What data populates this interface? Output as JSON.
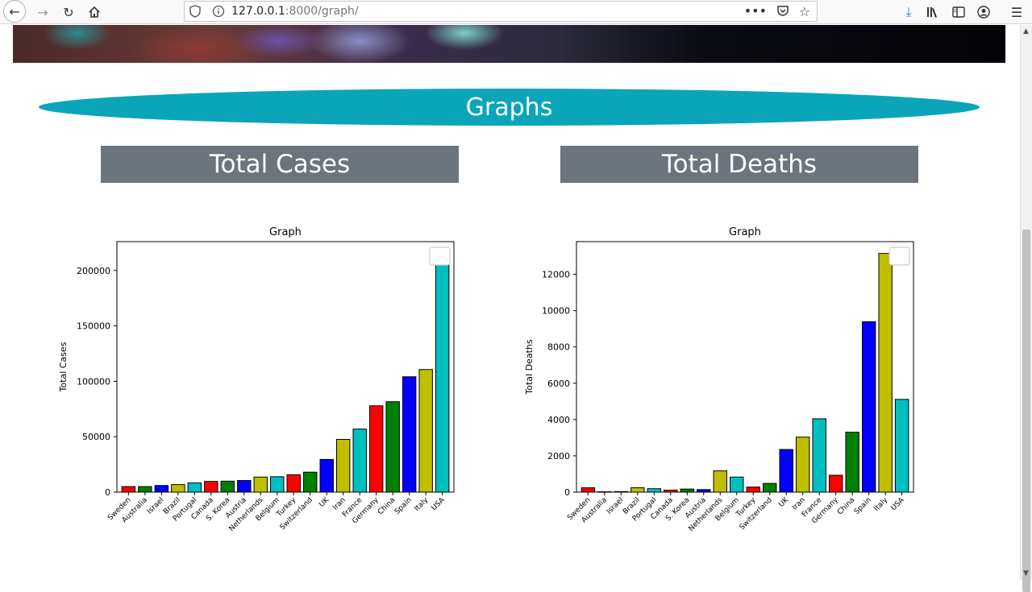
{
  "browser": {
    "url_host": "127.0.0.1",
    "url_rest": ":8000/graph/"
  },
  "page": {
    "heading": "Graphs",
    "left_title": "Total Cases",
    "right_title": "Total Deaths"
  },
  "chart_data": [
    {
      "type": "bar",
      "title": "Graph",
      "xlabel": "",
      "ylabel": "Total Cases",
      "ylim": [
        0,
        226000
      ],
      "yticks": [
        0,
        50000,
        100000,
        150000,
        200000
      ],
      "categories": [
        "Sweden",
        "Australia",
        "Israel",
        "Brazil",
        "Portugal",
        "Canada",
        "S. Korea",
        "Austria",
        "Netherlands",
        "Belgium",
        "Turkey",
        "Switzerland",
        "UK",
        "Iran",
        "France",
        "Germany",
        "China",
        "Spain",
        "Italy",
        "USA"
      ],
      "values": [
        5000,
        5000,
        6000,
        6800,
        8300,
        9700,
        9900,
        10500,
        13600,
        13900,
        15700,
        18000,
        29500,
        47600,
        56900,
        77900,
        81600,
        104100,
        110600,
        215300
      ],
      "colors": [
        "#ff0000",
        "#008000",
        "#0000ff",
        "#bfbf00",
        "#00bfbf",
        "#ff0000",
        "#008000",
        "#0000ff",
        "#bfbf00",
        "#00bfbf",
        "#ff0000",
        "#008000",
        "#0000ff",
        "#bfbf00",
        "#00bfbf",
        "#ff0000",
        "#008000",
        "#0000ff",
        "#bfbf00",
        "#00bfbf"
      ],
      "legend": "top-right"
    },
    {
      "type": "bar",
      "title": "Graph",
      "xlabel": "",
      "ylabel": "Total Deaths",
      "ylim": [
        0,
        13800
      ],
      "yticks": [
        0,
        2000,
        4000,
        6000,
        8000,
        10000,
        12000
      ],
      "categories": [
        "Sweden",
        "Australia",
        "Israel",
        "Brazil",
        "Portugal",
        "Canada",
        "S. Korea",
        "Austria",
        "Netherlands",
        "Belgium",
        "Turkey",
        "Switzerland",
        "UK",
        "Iran",
        "France",
        "Germany",
        "China",
        "Spain",
        "Italy",
        "USA"
      ],
      "values": [
        240,
        20,
        30,
        240,
        190,
        110,
        170,
        140,
        1170,
        830,
        280,
        480,
        2350,
        3030,
        4040,
        930,
        3300,
        9390,
        13150,
        5110
      ],
      "colors": [
        "#ff0000",
        "#008000",
        "#0000ff",
        "#bfbf00",
        "#00bfbf",
        "#ff0000",
        "#008000",
        "#0000ff",
        "#bfbf00",
        "#00bfbf",
        "#ff0000",
        "#008000",
        "#0000ff",
        "#bfbf00",
        "#00bfbf",
        "#ff0000",
        "#008000",
        "#0000ff",
        "#bfbf00",
        "#00bfbf"
      ],
      "legend": "top-right"
    }
  ]
}
